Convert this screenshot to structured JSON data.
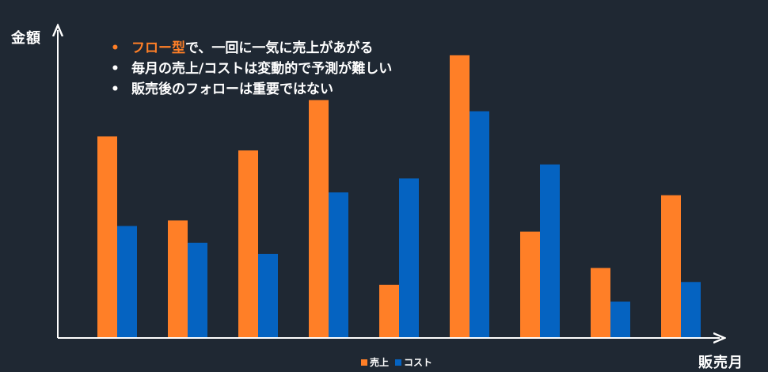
{
  "axis": {
    "y_title": "金額",
    "x_title": "販売月"
  },
  "bullets": [
    {
      "highlight": "フロー型",
      "text": "で、一回に一気に売上があがる"
    },
    {
      "highlight": "",
      "text": "毎月の売上/コストは変動的で予測が難しい"
    },
    {
      "highlight": "",
      "text": "販売後のフォローは重要ではない"
    }
  ],
  "bullet_glyph": "•",
  "colors": {
    "background": "#1f2833",
    "sales": "#ff7f27",
    "cost": "#0563c1",
    "highlight": "#ff7f27",
    "axis": "#ffffff"
  },
  "chart_data": {
    "type": "bar",
    "categories": [
      "",
      "",
      "",
      "",
      "",
      "",
      "",
      "",
      ""
    ],
    "series": [
      {
        "name": "売上",
        "color": "#ff7f27",
        "values": [
          72,
          42,
          67,
          85,
          19,
          101,
          38,
          25,
          51
        ]
      },
      {
        "name": "コスト",
        "color": "#0563c1",
        "values": [
          40,
          34,
          30,
          52,
          57,
          81,
          62,
          13,
          20
        ]
      }
    ],
    "xlabel": "販売月",
    "ylabel": "金額",
    "ylim": [
      0,
      110
    ],
    "grid": false,
    "legend": "bottom-center"
  }
}
